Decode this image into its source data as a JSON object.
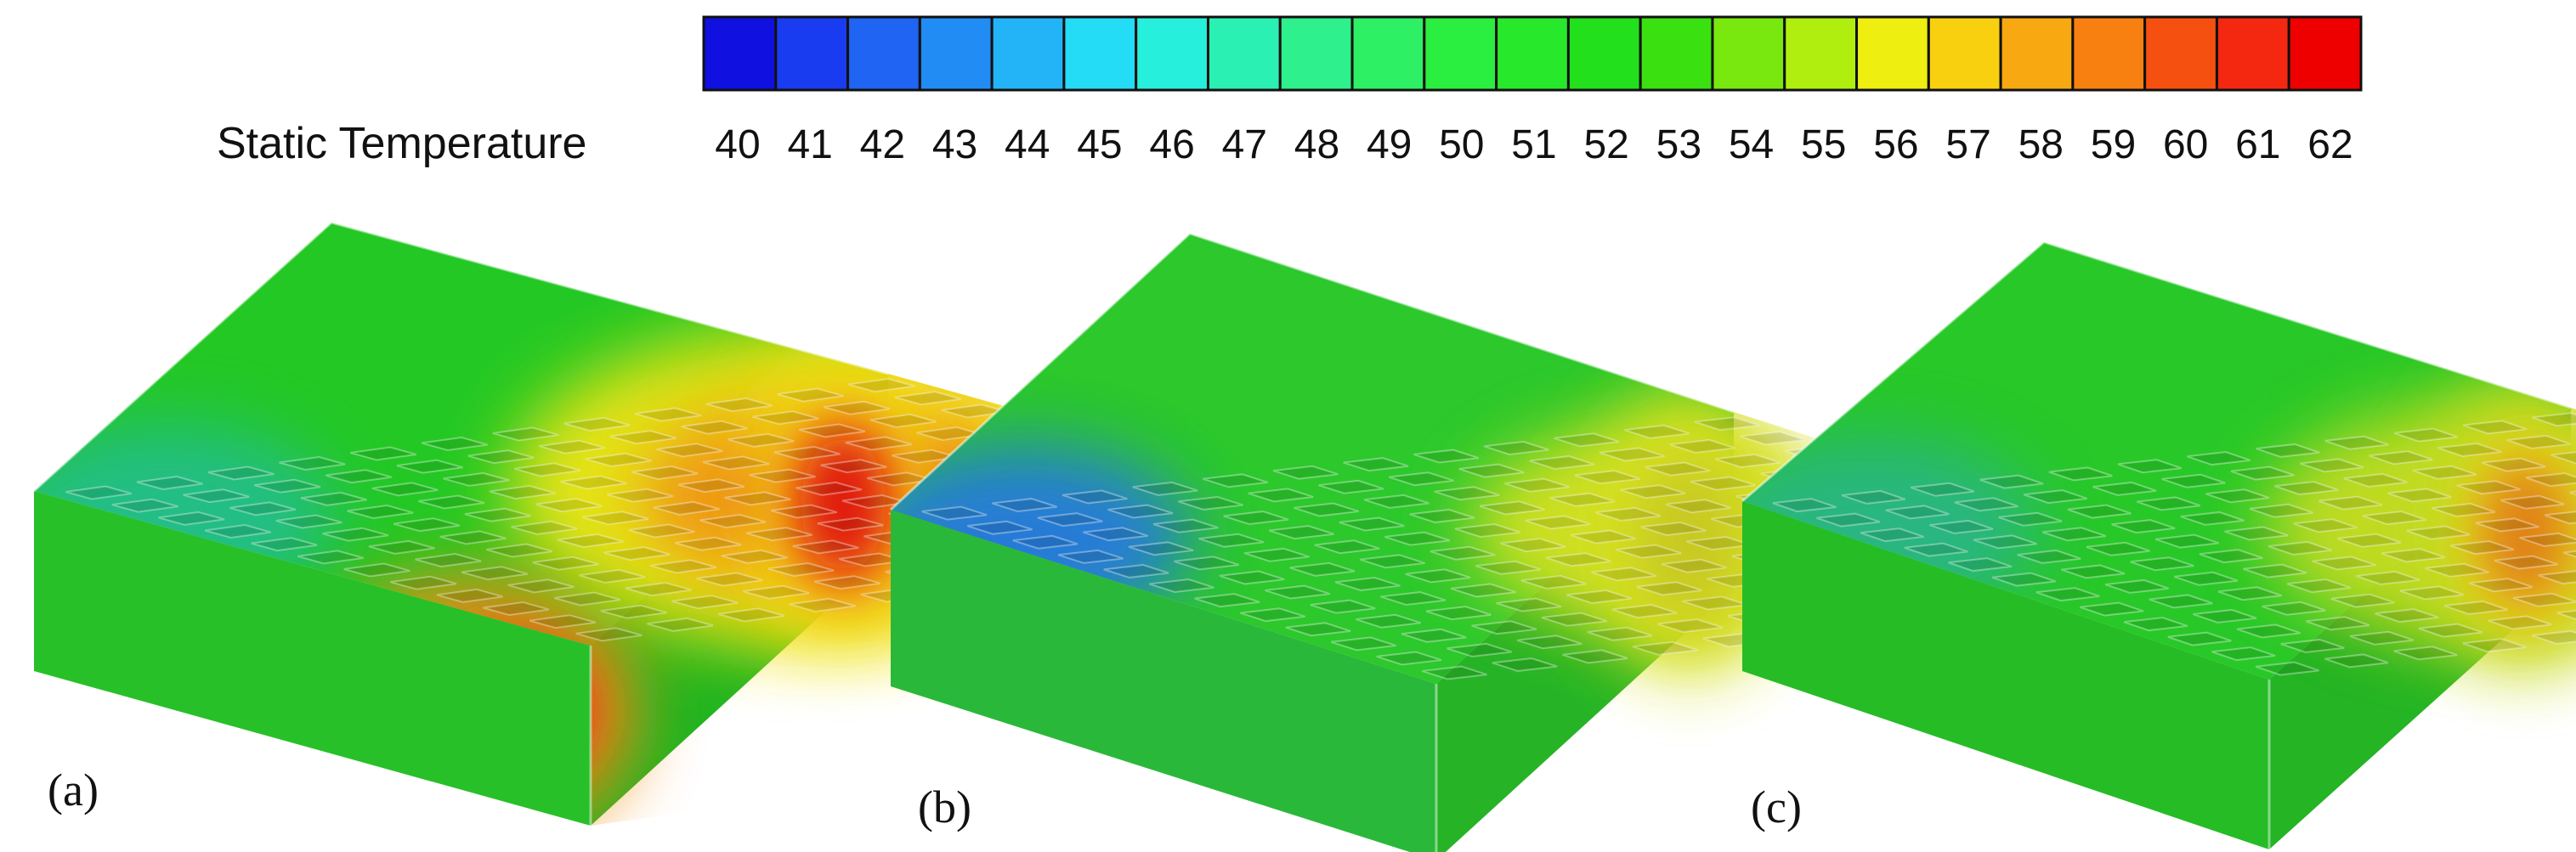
{
  "legend": {
    "title": "Static Temperature",
    "ticks": [
      "40",
      "41",
      "42",
      "43",
      "44",
      "45",
      "46",
      "47",
      "48",
      "49",
      "50",
      "51",
      "52",
      "53",
      "54",
      "55",
      "56",
      "57",
      "58",
      "59",
      "60",
      "61",
      "62"
    ],
    "colors": [
      "#1010e0",
      "#1a3cf0",
      "#1f64f2",
      "#208cf4",
      "#22b4f6",
      "#24dcf5",
      "#26f0dc",
      "#2af0b4",
      "#2ef08c",
      "#2ef064",
      "#2aee40",
      "#28e82c",
      "#22e01c",
      "#3ae010",
      "#78e80e",
      "#b0ee10",
      "#eeee10",
      "#f8d010",
      "#f8a810",
      "#f88010",
      "#f65010",
      "#f42810",
      "#ee0000"
    ]
  },
  "panels": [
    {
      "label": "(a)",
      "colors": {
        "base": "#24c824",
        "side": "#20b420",
        "front": "#28c028",
        "hot1": "#f0e418",
        "hot2": "#f08c14",
        "hot3": "#e83214",
        "hot4": "#e01010",
        "cool": "#22b4e6"
      }
    },
    {
      "label": "(b)",
      "colors": {
        "base": "#2cc82c",
        "side": "#26b426",
        "front": "#2ab83a",
        "hot1": "#d6e020",
        "hot2": "#d0d820",
        "hot3": "#c8d020",
        "hot4": "#c8c820",
        "cool": "#2878e0"
      }
    },
    {
      "label": "(c)",
      "colors": {
        "base": "#28c828",
        "side": "#24b424",
        "front": "#26bc26",
        "hot1": "#c8dc24",
        "hot2": "#e4cc1c",
        "hot3": "#e8a018",
        "hot4": "#e07c18",
        "cool": "#2aa4d8"
      }
    }
  ]
}
